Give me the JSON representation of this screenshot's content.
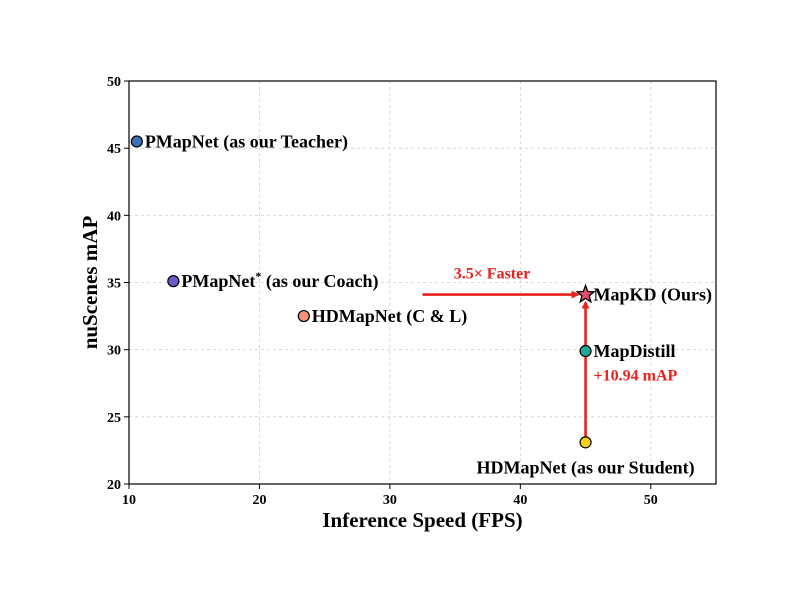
{
  "chart_data": {
    "type": "scatter",
    "title": "",
    "xlabel": "Inference Speed (FPS)",
    "ylabel": "nuScenes mAP",
    "xlim": [
      10,
      55
    ],
    "ylim": [
      20,
      50
    ],
    "xticks": [
      10,
      20,
      30,
      40,
      50
    ],
    "yticks": [
      20,
      25,
      30,
      35,
      40,
      45,
      50
    ],
    "grid": true,
    "points": [
      {
        "label": "PMapNet (as our Teacher)",
        "x": 10.6,
        "y": 45.5,
        "color": "#3f6fb5",
        "marker": "circle",
        "label_pos": "right"
      },
      {
        "label": "PMapNet",
        "label_sup": "*",
        "label_rest": " (as our Coach)",
        "x": 13.4,
        "y": 35.1,
        "color": "#6a5acd",
        "marker": "circle",
        "label_pos": "right"
      },
      {
        "label": "HDMapNet (C & L)",
        "x": 23.4,
        "y": 32.5,
        "color": "#f0957a",
        "marker": "circle",
        "label_pos": "right"
      },
      {
        "label": "MapKD (Ours)",
        "x": 45.0,
        "y": 34.1,
        "color": "#e05070",
        "marker": "star",
        "label_pos": "right"
      },
      {
        "label": "MapDistill",
        "x": 45.0,
        "y": 29.9,
        "color": "#1fa89a",
        "marker": "circle",
        "label_pos": "right"
      },
      {
        "label": "HDMapNet (as our Student)",
        "x": 45.0,
        "y": 23.1,
        "color": "#f2d21b",
        "marker": "circle",
        "label_pos": "below"
      }
    ],
    "annotations": [
      {
        "text": "3.5× Faster",
        "from": [
          32.5,
          34.1
        ],
        "to": [
          45.0,
          34.1
        ],
        "color": "#e8221b"
      },
      {
        "text": "+10.94 mAP",
        "from": [
          45.0,
          23.1
        ],
        "to": [
          45.0,
          34.1
        ],
        "color": "#e8221b"
      }
    ]
  }
}
